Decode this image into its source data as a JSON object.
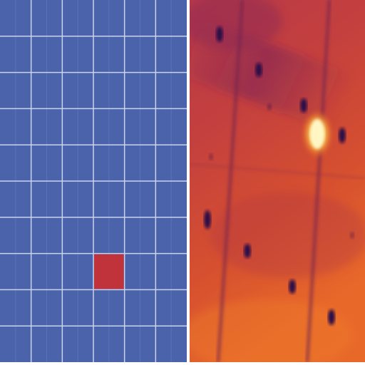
{
  "panels": [
    {
      "id": "module-layout-diagram",
      "grid": {
        "columns": 6,
        "rows": 10
      },
      "colors": {
        "cell": "#4a63ab",
        "grid_line": "#c9d2ee",
        "highlight": "#c1333a"
      },
      "highlighted_cells": [
        {
          "column": 4,
          "row": 8
        }
      ]
    },
    {
      "id": "thermal-image",
      "palette": [
        "#2d1046",
        "#8b2a4d",
        "#c23f3a",
        "#e6602a",
        "#fbe37a",
        "#fffbd8"
      ],
      "hotspot_count": 1,
      "dark_spot_count": 11
    }
  ]
}
